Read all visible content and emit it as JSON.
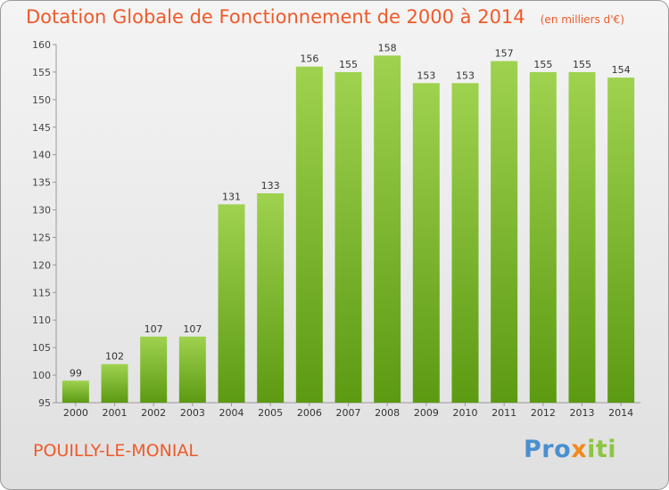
{
  "header": {
    "title": "Dotation Globale de Fonctionnement de 2000 à 2014",
    "unit": "(en milliers d'€)"
  },
  "footer": {
    "commune": "POUILLY-LE-MONIAL",
    "logo_text": "Proxiti",
    "logo_letters": [
      {
        "char": "P",
        "color": "#4a8fcf"
      },
      {
        "char": "r",
        "color": "#4a8fcf"
      },
      {
        "char": "o",
        "color": "#4a8fcf"
      },
      {
        "char": "x",
        "color": "#f08a1c"
      },
      {
        "char": "i",
        "color": "#8cc63f"
      },
      {
        "char": "t",
        "color": "#8cc63f"
      },
      {
        "char": "i",
        "color": "#8cc63f"
      }
    ]
  },
  "chart_data": {
    "type": "bar",
    "categories": [
      "2000",
      "2001",
      "2002",
      "2003",
      "2004",
      "2005",
      "2006",
      "2007",
      "2008",
      "2009",
      "2010",
      "2011",
      "2012",
      "2013",
      "2014"
    ],
    "values": [
      99,
      102,
      107,
      107,
      131,
      133,
      156,
      155,
      158,
      153,
      153,
      157,
      155,
      155,
      154
    ],
    "ylim": [
      95,
      160
    ],
    "yticks": [
      95,
      100,
      105,
      110,
      115,
      120,
      125,
      130,
      135,
      140,
      145,
      150,
      155,
      160
    ],
    "grid": false,
    "bar_color_top": "#9fd24f",
    "bar_color_bottom": "#5c9a12"
  }
}
